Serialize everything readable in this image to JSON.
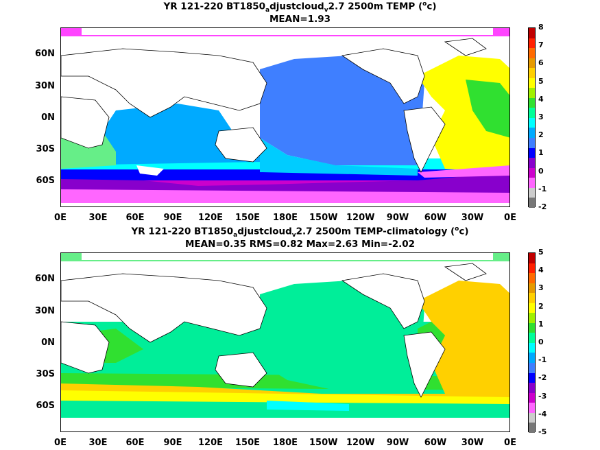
{
  "panel1": {
    "title_a": "YR 121-220 BT1850",
    "title_sub1": "a",
    "title_b": "djustcloud",
    "title_sub2": "v",
    "title_c": "2.7 2500m TEMP (",
    "title_sup": "o",
    "title_d": "c)",
    "stats": "MEAN=1.93",
    "colorbar_labels": [
      "8",
      "7",
      "6",
      "5",
      "4",
      "3",
      "2",
      "1",
      "0",
      "-1",
      "-2"
    ],
    "colorbar_colors": [
      "#c00000",
      "#ff2000",
      "#ff6a00",
      "#e69a00",
      "#ffd000",
      "#ffff00",
      "#a0f000",
      "#30e030",
      "#00ff99",
      "#00ffff",
      "#00aaff",
      "#3f7fff",
      "#0000ff",
      "#8800cc",
      "#cc00cc",
      "#ff66ff",
      "#cccccc",
      "#777777"
    ]
  },
  "panel2": {
    "title_a": "YR 121-220 BT1850",
    "title_sub1": "a",
    "title_b": "djustcloud",
    "title_sub2": "v",
    "title_c": "2.7 2500m TEMP-climatology (",
    "title_sup": "o",
    "title_d": "c)",
    "stats": "MEAN=0.35   RMS=0.82   Max=2.63   Min=-2.02",
    "colorbar_labels": [
      "5",
      "4",
      "3",
      "2",
      "1",
      "0",
      "-1",
      "-2",
      "-3",
      "-4",
      "-5"
    ],
    "colorbar_colors": [
      "#c00000",
      "#ff2000",
      "#ff6a00",
      "#e69a00",
      "#ffd000",
      "#ffff00",
      "#a0f000",
      "#30e030",
      "#00ff99",
      "#00ffff",
      "#00aaff",
      "#3f7fff",
      "#0000ff",
      "#8800cc",
      "#cc00cc",
      "#ff66ff",
      "#cccccc",
      "#777777"
    ]
  },
  "lat_labels": [
    "60N",
    "30N",
    "0N",
    "30S",
    "60S"
  ],
  "lon_labels": [
    "0E",
    "30E",
    "60E",
    "90E",
    "120E",
    "150E",
    "180E",
    "150W",
    "120W",
    "90W",
    "60W",
    "30W",
    "0E"
  ]
}
